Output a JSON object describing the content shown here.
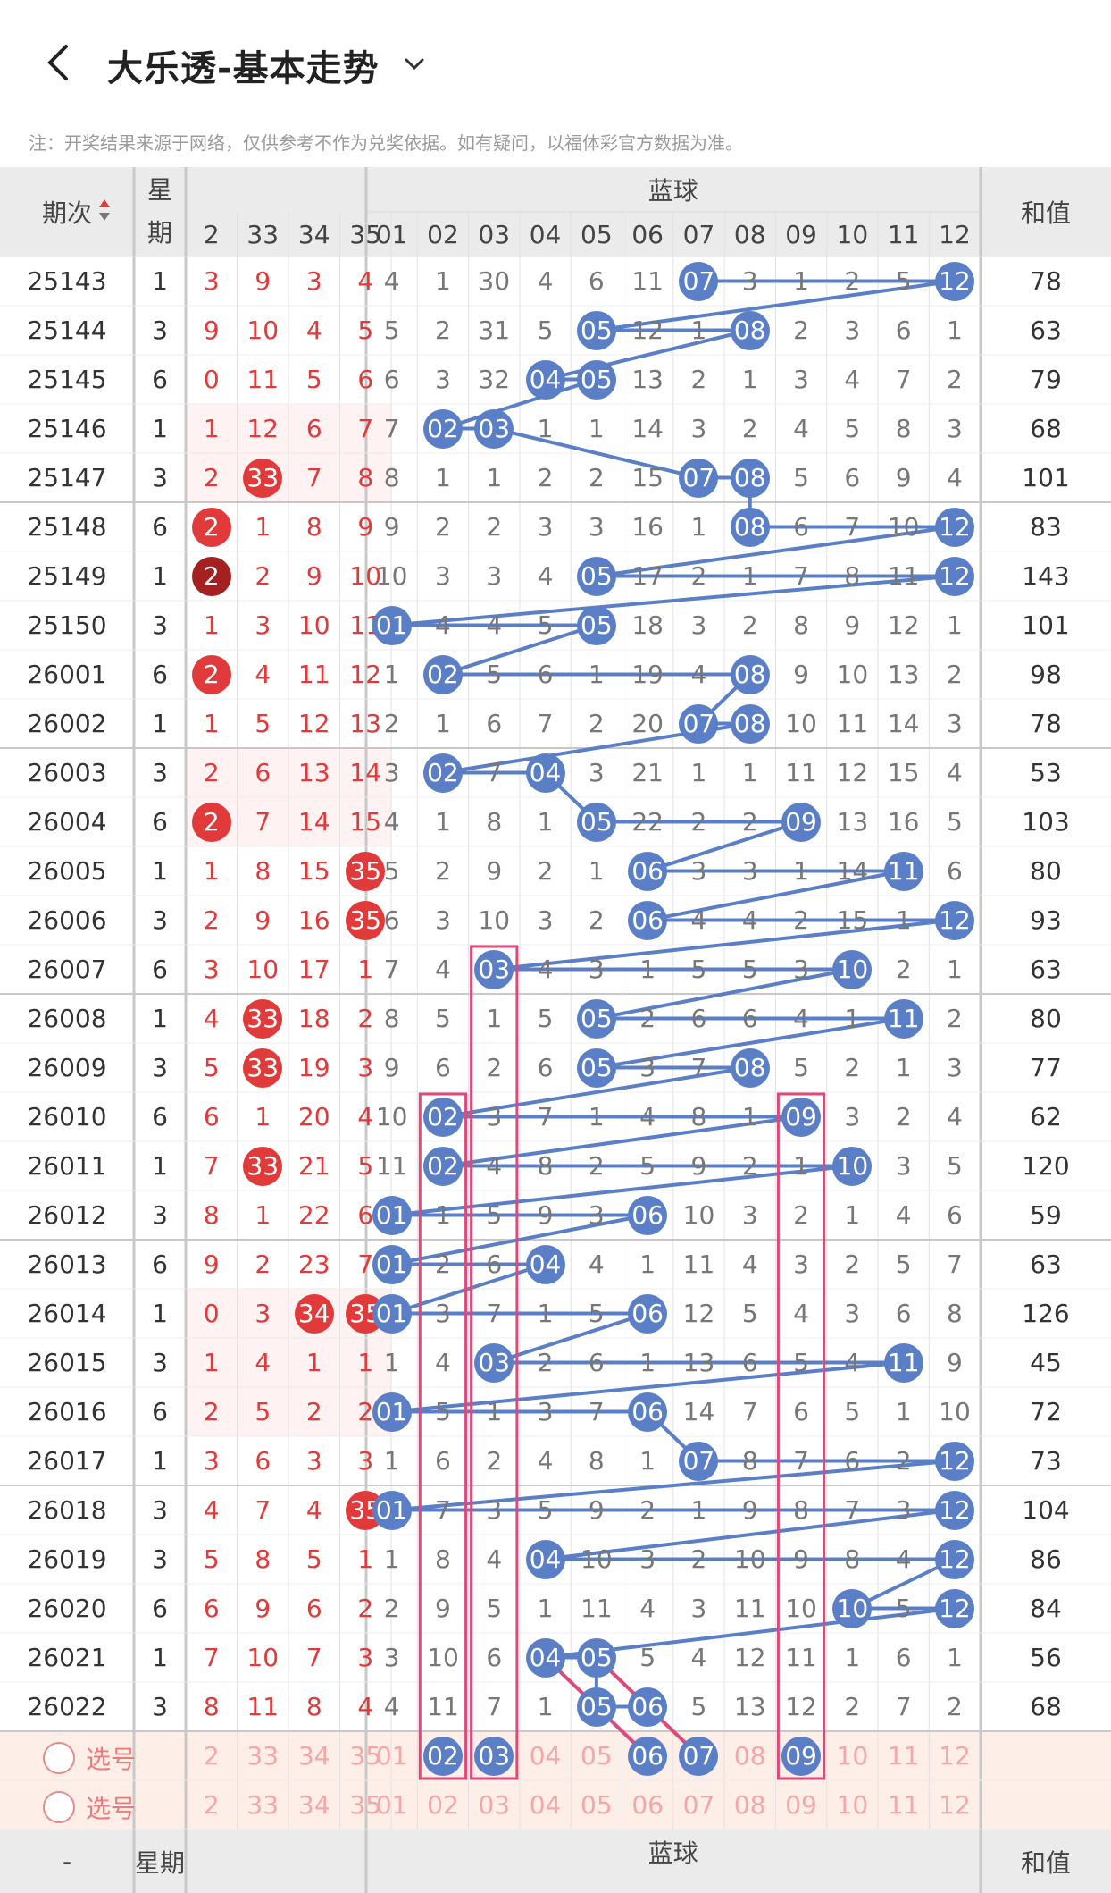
{
  "header": {
    "title": "大乐透-基本走势",
    "back_icon": "back-arrow-icon",
    "dropdown_icon": "chevron-down-icon"
  },
  "notice": "注：开奖结果来源于网络，仅供参考不作为兑奖依据。如有疑问，以福体彩官方数据为准。",
  "columns": {
    "period": "期次",
    "weekday": "星期",
    "blue_group": "蓝球",
    "sum": "和值",
    "front_visible": [
      "2",
      "33",
      "34",
      "35"
    ],
    "blue": [
      "01",
      "02",
      "03",
      "04",
      "05",
      "06",
      "07",
      "08",
      "09",
      "10",
      "11",
      "12"
    ]
  },
  "rows": [
    {
      "period": "25143",
      "week": "1",
      "front": [
        "3",
        "9",
        "3",
        "4"
      ],
      "front_hit": [],
      "blue": [
        "4",
        "1",
        "30",
        "4",
        "6",
        "11",
        "07",
        "3",
        "1",
        "2",
        "5",
        "12"
      ],
      "blue_hit": [
        6,
        11
      ],
      "sum": "78"
    },
    {
      "period": "25144",
      "week": "3",
      "front": [
        "9",
        "10",
        "4",
        "5"
      ],
      "front_hit": [],
      "blue": [
        "5",
        "2",
        "31",
        "5",
        "05",
        "12",
        "1",
        "08",
        "2",
        "3",
        "6",
        "1"
      ],
      "blue_hit": [
        4,
        7
      ],
      "sum": "63"
    },
    {
      "period": "25145",
      "week": "6",
      "front": [
        "0",
        "11",
        "5",
        "6"
      ],
      "front_hit": [],
      "blue": [
        "6",
        "3",
        "32",
        "04",
        "05",
        "13",
        "2",
        "1",
        "3",
        "4",
        "7",
        "2"
      ],
      "blue_hit": [
        3,
        4
      ],
      "sum": "79"
    },
    {
      "period": "25146",
      "week": "1",
      "front": [
        "1",
        "12",
        "6",
        "7"
      ],
      "front_hit": [],
      "blue": [
        "7",
        "02",
        "03",
        "1",
        "1",
        "14",
        "3",
        "2",
        "4",
        "5",
        "8",
        "3"
      ],
      "blue_hit": [
        1,
        2
      ],
      "sum": "68"
    },
    {
      "period": "25147",
      "week": "3",
      "front": [
        "2",
        "33",
        "7",
        "8"
      ],
      "front_hit": [
        1
      ],
      "blue": [
        "8",
        "1",
        "1",
        "2",
        "2",
        "15",
        "07",
        "08",
        "5",
        "6",
        "9",
        "4"
      ],
      "blue_hit": [
        6,
        7
      ],
      "sum": "101"
    },
    {
      "period": "25148",
      "week": "6",
      "front": [
        "2",
        "1",
        "8",
        "9"
      ],
      "front_hit": [
        0
      ],
      "blue": [
        "9",
        "2",
        "2",
        "3",
        "3",
        "16",
        "1",
        "08",
        "6",
        "7",
        "10",
        "12"
      ],
      "blue_hit": [
        7,
        11
      ],
      "sum": "83"
    },
    {
      "period": "25149",
      "week": "1",
      "front": [
        "2",
        "2",
        "9",
        "10"
      ],
      "front_hit": [
        0
      ],
      "front_dark": true,
      "blue": [
        "10",
        "3",
        "3",
        "4",
        "05",
        "17",
        "2",
        "1",
        "7",
        "8",
        "11",
        "12"
      ],
      "blue_hit": [
        4,
        11
      ],
      "sum": "143"
    },
    {
      "period": "25150",
      "week": "3",
      "front": [
        "1",
        "3",
        "10",
        "11"
      ],
      "front_hit": [],
      "blue": [
        "01",
        "4",
        "4",
        "5",
        "05",
        "18",
        "3",
        "2",
        "8",
        "9",
        "12",
        "1"
      ],
      "blue_hit": [
        0,
        4
      ],
      "sum": "101"
    },
    {
      "period": "26001",
      "week": "6",
      "front": [
        "2",
        "4",
        "11",
        "12"
      ],
      "front_hit": [
        0
      ],
      "blue": [
        "1",
        "02",
        "5",
        "6",
        "1",
        "19",
        "4",
        "08",
        "9",
        "10",
        "13",
        "2"
      ],
      "blue_hit": [
        1,
        7
      ],
      "sum": "98"
    },
    {
      "period": "26002",
      "week": "1",
      "front": [
        "1",
        "5",
        "12",
        "13"
      ],
      "front_hit": [],
      "blue": [
        "2",
        "1",
        "6",
        "7",
        "2",
        "20",
        "07",
        "08",
        "10",
        "11",
        "14",
        "3"
      ],
      "blue_hit": [
        6,
        7
      ],
      "sum": "78"
    },
    {
      "period": "26003",
      "week": "3",
      "front": [
        "2",
        "6",
        "13",
        "14"
      ],
      "front_hit": [],
      "blue": [
        "3",
        "02",
        "7",
        "04",
        "3",
        "21",
        "1",
        "1",
        "11",
        "12",
        "15",
        "4"
      ],
      "blue_hit": [
        1,
        3
      ],
      "sum": "53"
    },
    {
      "period": "26004",
      "week": "6",
      "front": [
        "2",
        "7",
        "14",
        "15"
      ],
      "front_hit": [
        0
      ],
      "blue": [
        "4",
        "1",
        "8",
        "1",
        "05",
        "22",
        "2",
        "2",
        "09",
        "13",
        "16",
        "5"
      ],
      "blue_hit": [
        4,
        8
      ],
      "sum": "103"
    },
    {
      "period": "26005",
      "week": "1",
      "front": [
        "1",
        "8",
        "15",
        "35"
      ],
      "front_hit": [
        3
      ],
      "blue": [
        "5",
        "2",
        "9",
        "2",
        "1",
        "06",
        "3",
        "3",
        "1",
        "14",
        "11",
        "6"
      ],
      "blue_hit": [
        5,
        10
      ],
      "sum": "80"
    },
    {
      "period": "26006",
      "week": "3",
      "front": [
        "2",
        "9",
        "16",
        "35"
      ],
      "front_hit": [
        3
      ],
      "blue": [
        "6",
        "3",
        "10",
        "3",
        "2",
        "06",
        "4",
        "4",
        "2",
        "15",
        "1",
        "12"
      ],
      "blue_hit": [
        5,
        11
      ],
      "sum": "93"
    },
    {
      "period": "26007",
      "week": "6",
      "front": [
        "3",
        "10",
        "17",
        "1"
      ],
      "front_hit": [],
      "blue": [
        "7",
        "4",
        "03",
        "4",
        "3",
        "1",
        "5",
        "5",
        "3",
        "10",
        "2",
        "1"
      ],
      "blue_hit": [
        2,
        9
      ],
      "sum": "63"
    },
    {
      "period": "26008",
      "week": "1",
      "front": [
        "4",
        "33",
        "18",
        "2"
      ],
      "front_hit": [
        1
      ],
      "blue": [
        "8",
        "5",
        "1",
        "5",
        "05",
        "2",
        "6",
        "6",
        "4",
        "1",
        "11",
        "2"
      ],
      "blue_hit": [
        4,
        10
      ],
      "sum": "80"
    },
    {
      "period": "26009",
      "week": "3",
      "front": [
        "5",
        "33",
        "19",
        "3"
      ],
      "front_hit": [
        1
      ],
      "blue": [
        "9",
        "6",
        "2",
        "6",
        "05",
        "3",
        "7",
        "08",
        "5",
        "2",
        "1",
        "3"
      ],
      "blue_hit": [
        4,
        7
      ],
      "sum": "77"
    },
    {
      "period": "26010",
      "week": "6",
      "front": [
        "6",
        "1",
        "20",
        "4"
      ],
      "front_hit": [],
      "blue": [
        "10",
        "02",
        "3",
        "7",
        "1",
        "4",
        "8",
        "1",
        "09",
        "3",
        "2",
        "4"
      ],
      "blue_hit": [
        1,
        8
      ],
      "sum": "62"
    },
    {
      "period": "26011",
      "week": "1",
      "front": [
        "7",
        "33",
        "21",
        "5"
      ],
      "front_hit": [
        1
      ],
      "blue": [
        "11",
        "02",
        "4",
        "8",
        "2",
        "5",
        "9",
        "2",
        "1",
        "10",
        "3",
        "5"
      ],
      "blue_hit": [
        1,
        9
      ],
      "sum": "120"
    },
    {
      "period": "26012",
      "week": "3",
      "front": [
        "8",
        "1",
        "22",
        "6"
      ],
      "front_hit": [],
      "blue": [
        "01",
        "1",
        "5",
        "9",
        "3",
        "06",
        "10",
        "3",
        "2",
        "1",
        "4",
        "6"
      ],
      "blue_hit": [
        0,
        5
      ],
      "sum": "59"
    },
    {
      "period": "26013",
      "week": "6",
      "front": [
        "9",
        "2",
        "23",
        "7"
      ],
      "front_hit": [],
      "blue": [
        "01",
        "2",
        "6",
        "04",
        "4",
        "1",
        "11",
        "4",
        "3",
        "2",
        "5",
        "7"
      ],
      "blue_hit": [
        0,
        3
      ],
      "sum": "63"
    },
    {
      "period": "26014",
      "week": "1",
      "front": [
        "0",
        "3",
        "34",
        "35"
      ],
      "front_hit": [
        2,
        3
      ],
      "blue": [
        "01",
        "3",
        "7",
        "1",
        "5",
        "06",
        "12",
        "5",
        "4",
        "3",
        "6",
        "8"
      ],
      "blue_hit": [
        0,
        5
      ],
      "sum": "126"
    },
    {
      "period": "26015",
      "week": "3",
      "front": [
        "1",
        "4",
        "1",
        "1"
      ],
      "front_hit": [],
      "blue": [
        "1",
        "4",
        "03",
        "2",
        "6",
        "1",
        "13",
        "6",
        "5",
        "4",
        "11",
        "9"
      ],
      "blue_hit": [
        2,
        10
      ],
      "sum": "45"
    },
    {
      "period": "26016",
      "week": "6",
      "front": [
        "2",
        "5",
        "2",
        "2"
      ],
      "front_hit": [],
      "blue": [
        "01",
        "5",
        "1",
        "3",
        "7",
        "06",
        "14",
        "7",
        "6",
        "5",
        "1",
        "10"
      ],
      "blue_hit": [
        0,
        5
      ],
      "sum": "72"
    },
    {
      "period": "26017",
      "week": "1",
      "front": [
        "3",
        "6",
        "3",
        "3"
      ],
      "front_hit": [],
      "blue": [
        "1",
        "6",
        "2",
        "4",
        "8",
        "1",
        "07",
        "8",
        "7",
        "6",
        "2",
        "12"
      ],
      "blue_hit": [
        6,
        11
      ],
      "sum": "73"
    },
    {
      "period": "26018",
      "week": "3",
      "front": [
        "4",
        "7",
        "4",
        "35"
      ],
      "front_hit": [
        3
      ],
      "blue": [
        "01",
        "7",
        "3",
        "5",
        "9",
        "2",
        "1",
        "9",
        "8",
        "7",
        "3",
        "12"
      ],
      "blue_hit": [
        0,
        11
      ],
      "sum": "104"
    },
    {
      "period": "26019",
      "week": "3",
      "front": [
        "5",
        "8",
        "5",
        "1"
      ],
      "front_hit": [],
      "blue": [
        "1",
        "8",
        "4",
        "04",
        "10",
        "3",
        "2",
        "10",
        "9",
        "8",
        "4",
        "12"
      ],
      "blue_hit": [
        3,
        11
      ],
      "sum": "86"
    },
    {
      "period": "26020",
      "week": "6",
      "front": [
        "6",
        "9",
        "6",
        "2"
      ],
      "front_hit": [],
      "blue": [
        "2",
        "9",
        "5",
        "1",
        "11",
        "4",
        "3",
        "11",
        "10",
        "10",
        "5",
        "12"
      ],
      "blue_hit": [
        9,
        11
      ],
      "sum": "84"
    },
    {
      "period": "26021",
      "week": "1",
      "front": [
        "7",
        "10",
        "7",
        "3"
      ],
      "front_hit": [],
      "blue": [
        "3",
        "10",
        "6",
        "04",
        "05",
        "5",
        "4",
        "12",
        "11",
        "1",
        "6",
        "1"
      ],
      "blue_hit": [
        3,
        4
      ],
      "sum": "56"
    },
    {
      "period": "26022",
      "week": "3",
      "front": [
        "8",
        "11",
        "8",
        "4"
      ],
      "front_hit": [],
      "blue": [
        "4",
        "11",
        "7",
        "1",
        "05",
        "06",
        "5",
        "13",
        "12",
        "2",
        "7",
        "2"
      ],
      "blue_hit": [
        4,
        5
      ],
      "sum": "68"
    }
  ],
  "pick_rows": [
    {
      "label": "选号",
      "front": [
        "2",
        "33",
        "34",
        "35"
      ],
      "blue_selected": [
        1,
        2,
        5,
        6,
        8
      ]
    },
    {
      "label": "选号",
      "front": [
        "2",
        "33",
        "34",
        "35"
      ],
      "blue_selected": []
    }
  ],
  "footer": {
    "period": "-",
    "weekday": "星期",
    "blue_group": "蓝球",
    "sum": "和值"
  },
  "colors": {
    "blue_ball": "#5b7fc7",
    "red": "#e03a3a",
    "dark_red": "#a52121",
    "pink_box": "#e0487a",
    "pick_bg": "#fdeee8"
  }
}
